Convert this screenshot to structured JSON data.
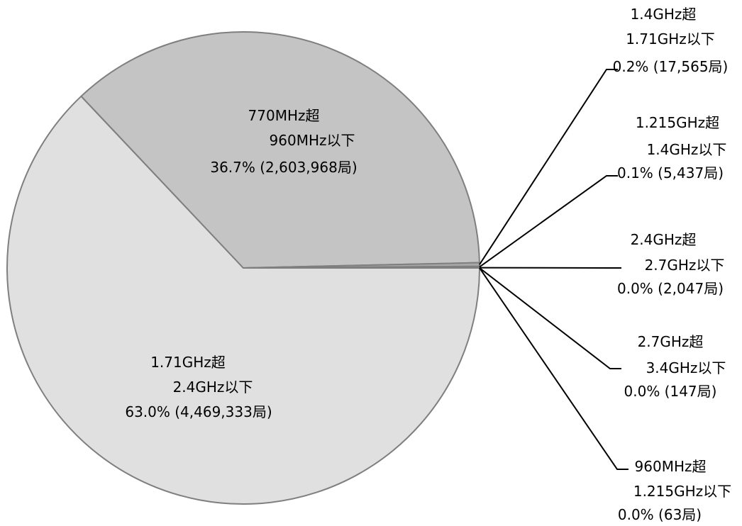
{
  "chart_data": {
    "type": "pie",
    "slices": [
      {
        "category": [
          "1.71GHz超",
          "2.4GHz以下"
        ],
        "percent_label": "63.0% (4,469,333局)",
        "value": 4469333,
        "color": "#e0e0e0"
      },
      {
        "category": [
          "770MHz超",
          "960MHz以下"
        ],
        "percent_label": "36.7% (2,603,968局)",
        "value": 2603968,
        "color": "#c4c4c4"
      },
      {
        "category": [
          "1.4GHz超",
          "1.71GHz以下"
        ],
        "percent_label": "0.2% (17,565局)",
        "value": 17565,
        "color": "#a8a8a8"
      },
      {
        "category": [
          "1.215GHz超",
          "1.4GHz以下"
        ],
        "percent_label": "0.1% (5,437局)",
        "value": 5437,
        "color": "#8c8c8c"
      },
      {
        "category": [
          "2.4GHz超",
          "2.7GHz以下"
        ],
        "percent_label": "0.0% (2,047局)",
        "value": 2047,
        "color": "#707070"
      },
      {
        "category": [
          "2.7GHz超",
          "3.4GHz以下"
        ],
        "percent_label": "0.0% (147局)",
        "value": 147,
        "color": "#606060"
      },
      {
        "category": [
          "960MHz超",
          "1.215GHz以下"
        ],
        "percent_label": "0.0% (63局)",
        "value": 63,
        "color": "#505050"
      }
    ]
  }
}
